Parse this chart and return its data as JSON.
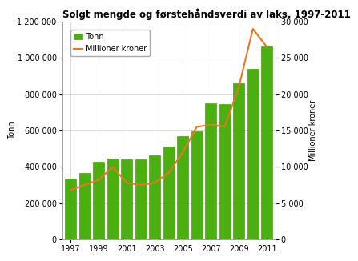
{
  "title": "Solgt mengde og førstehåndsverdi av laks. 1997-2011",
  "years15": [
    1997,
    1998,
    1999,
    2000,
    2001,
    2002,
    2003,
    2004,
    2005,
    2006,
    2007,
    2008,
    2009,
    2010,
    2011
  ],
  "tonn15": [
    335000,
    365000,
    430000,
    445000,
    440000,
    440000,
    465000,
    510000,
    570000,
    595000,
    750000,
    745000,
    860000,
    940000,
    1065000
  ],
  "mill15": [
    6800,
    7500,
    8200,
    10000,
    7800,
    7500,
    7800,
    9200,
    12000,
    15500,
    15800,
    15500,
    21000,
    29000,
    26500
  ],
  "bar_color": "#4caf10",
  "bar_edge_color": "#3a8a0a",
  "line_color": "#e87722",
  "ylim_left": [
    0,
    1200000
  ],
  "ylim_right": [
    0,
    30000
  ],
  "yticks_left": [
    0,
    200000,
    400000,
    600000,
    800000,
    1000000,
    1200000
  ],
  "yticks_right": [
    0,
    5000,
    10000,
    15000,
    20000,
    25000,
    30000
  ],
  "ylabel_left": "Tonn",
  "ylabel_right": "Millioner kroner",
  "legend_tonn": "Tonn",
  "legend_mill": "Millioner kroner",
  "bg_color": "#ffffff",
  "grid_color": "#cccccc",
  "title_fontsize": 8.5,
  "tick_fontsize": 7,
  "xtick_years": [
    1997,
    1999,
    2001,
    2003,
    2005,
    2007,
    2009,
    2011
  ]
}
